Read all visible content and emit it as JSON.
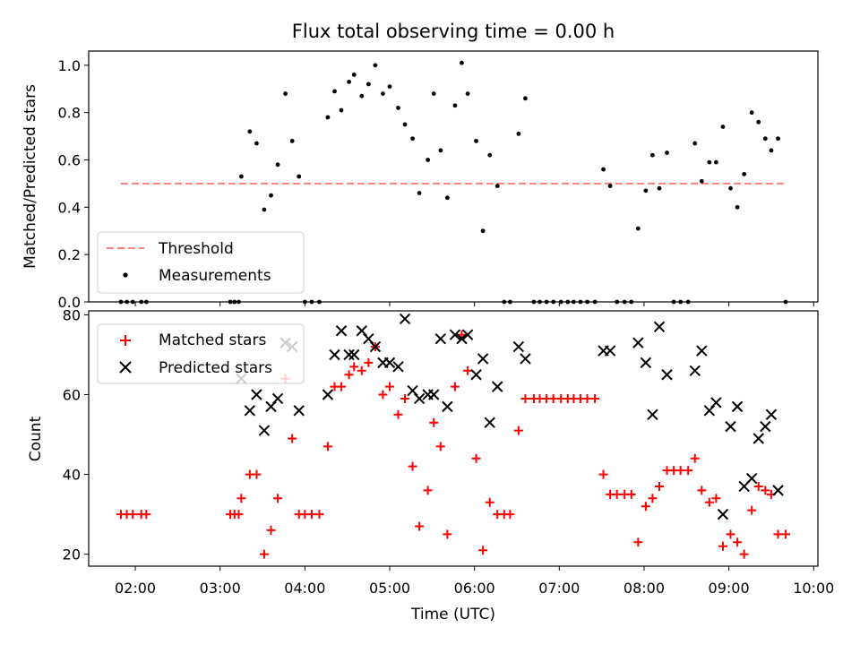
{
  "figure": {
    "title": "Flux total observing time = 0.00 h",
    "xlabel": "Time (UTC)",
    "x_tick_labels": [
      "02:00",
      "03:00",
      "04:00",
      "05:00",
      "06:00",
      "07:00",
      "08:00",
      "09:00",
      "10:00"
    ]
  },
  "chart_data": [
    {
      "type": "scatter",
      "ylabel": "Matched/Predicted stars",
      "xlim": [
        1.45,
        10.05
      ],
      "ylim": [
        0,
        1.06
      ],
      "y_ticks": [
        0.0,
        0.2,
        0.4,
        0.6,
        0.8,
        1.0
      ],
      "y_tick_labels": [
        "0.0",
        "0.2",
        "0.4",
        "0.6",
        "0.8",
        "1.0"
      ],
      "legend_position": "lower-left",
      "threshold": {
        "name": "Threshold",
        "value": 0.5,
        "x_range": [
          1.83,
          9.67
        ],
        "color": "#ff7f7f"
      },
      "series": [
        {
          "name": "Measurements",
          "color": "#000000",
          "marker": "dot",
          "points": [
            [
              1.83,
              0
            ],
            [
              1.9,
              0
            ],
            [
              1.97,
              0
            ],
            [
              2.07,
              0
            ],
            [
              2.13,
              0
            ],
            [
              3.12,
              0
            ],
            [
              3.17,
              0
            ],
            [
              3.22,
              0
            ],
            [
              3.25,
              0.53
            ],
            [
              3.35,
              0.72
            ],
            [
              3.43,
              0.67
            ],
            [
              3.52,
              0.39
            ],
            [
              3.6,
              0.45
            ],
            [
              3.68,
              0.58
            ],
            [
              3.77,
              0.88
            ],
            [
              3.85,
              0.68
            ],
            [
              3.93,
              0.53
            ],
            [
              4.0,
              0
            ],
            [
              4.08,
              0
            ],
            [
              4.17,
              0
            ],
            [
              4.27,
              0.78
            ],
            [
              4.35,
              0.89
            ],
            [
              4.43,
              0.81
            ],
            [
              4.52,
              0.93
            ],
            [
              4.58,
              0.96
            ],
            [
              4.67,
              0.87
            ],
            [
              4.75,
              0.92
            ],
            [
              4.83,
              1.0
            ],
            [
              4.92,
              0.88
            ],
            [
              5.0,
              0.91
            ],
            [
              5.1,
              0.82
            ],
            [
              5.18,
              0.75
            ],
            [
              5.27,
              0.69
            ],
            [
              5.35,
              0.46
            ],
            [
              5.45,
              0.6
            ],
            [
              5.52,
              0.88
            ],
            [
              5.6,
              0.64
            ],
            [
              5.68,
              0.44
            ],
            [
              5.77,
              0.83
            ],
            [
              5.85,
              1.01
            ],
            [
              5.92,
              0.88
            ],
            [
              6.02,
              0.68
            ],
            [
              6.1,
              0.3
            ],
            [
              6.18,
              0.62
            ],
            [
              6.27,
              0.49
            ],
            [
              6.35,
              0
            ],
            [
              6.42,
              0
            ],
            [
              6.52,
              0.71
            ],
            [
              6.6,
              0.86
            ],
            [
              6.7,
              0
            ],
            [
              6.77,
              0
            ],
            [
              6.85,
              0
            ],
            [
              6.93,
              0
            ],
            [
              7.02,
              0
            ],
            [
              7.1,
              0
            ],
            [
              7.17,
              0
            ],
            [
              7.25,
              0
            ],
            [
              7.33,
              0
            ],
            [
              7.42,
              0
            ],
            [
              7.52,
              0.56
            ],
            [
              7.6,
              0.49
            ],
            [
              7.68,
              0
            ],
            [
              7.77,
              0
            ],
            [
              7.85,
              0
            ],
            [
              7.93,
              0.31
            ],
            [
              8.02,
              0.47
            ],
            [
              8.1,
              0.62
            ],
            [
              8.18,
              0.48
            ],
            [
              8.27,
              0.63
            ],
            [
              8.35,
              0
            ],
            [
              8.43,
              0
            ],
            [
              8.52,
              0
            ],
            [
              8.6,
              0.67
            ],
            [
              8.68,
              0.51
            ],
            [
              8.77,
              0.59
            ],
            [
              8.85,
              0.59
            ],
            [
              8.93,
              0.74
            ],
            [
              9.02,
              0.48
            ],
            [
              9.1,
              0.4
            ],
            [
              9.18,
              0.54
            ],
            [
              9.27,
              0.8
            ],
            [
              9.35,
              0.76
            ],
            [
              9.43,
              0.69
            ],
            [
              9.5,
              0.64
            ],
            [
              9.58,
              0.69
            ],
            [
              9.67,
              0
            ]
          ]
        }
      ]
    },
    {
      "type": "scatter",
      "ylabel": "Count",
      "xlim": [
        1.45,
        10.05
      ],
      "ylim": [
        17,
        81
      ],
      "y_ticks": [
        20,
        40,
        60,
        80
      ],
      "y_tick_labels": [
        "20",
        "40",
        "60",
        "80"
      ],
      "legend_position": "upper-left",
      "series": [
        {
          "name": "Matched stars",
          "color": "#ff0000",
          "marker": "plus",
          "points": [
            [
              1.83,
              30
            ],
            [
              1.9,
              30
            ],
            [
              1.97,
              30
            ],
            [
              2.07,
              30
            ],
            [
              2.13,
              30
            ],
            [
              3.12,
              30
            ],
            [
              3.17,
              30
            ],
            [
              3.22,
              30
            ],
            [
              3.25,
              34
            ],
            [
              3.35,
              40
            ],
            [
              3.43,
              40
            ],
            [
              3.52,
              20
            ],
            [
              3.6,
              26
            ],
            [
              3.68,
              34
            ],
            [
              3.77,
              64
            ],
            [
              3.85,
              49
            ],
            [
              3.93,
              30
            ],
            [
              4.0,
              30
            ],
            [
              4.08,
              30
            ],
            [
              4.17,
              30
            ],
            [
              4.27,
              47
            ],
            [
              4.35,
              62
            ],
            [
              4.43,
              62
            ],
            [
              4.52,
              65
            ],
            [
              4.58,
              67
            ],
            [
              4.67,
              66
            ],
            [
              4.75,
              68
            ],
            [
              4.83,
              72
            ],
            [
              4.92,
              60
            ],
            [
              5.0,
              62
            ],
            [
              5.1,
              55
            ],
            [
              5.18,
              59
            ],
            [
              5.27,
              42
            ],
            [
              5.35,
              27
            ],
            [
              5.45,
              36
            ],
            [
              5.52,
              53
            ],
            [
              5.6,
              47
            ],
            [
              5.68,
              25
            ],
            [
              5.77,
              62
            ],
            [
              5.85,
              75
            ],
            [
              5.92,
              66
            ],
            [
              6.02,
              44
            ],
            [
              6.1,
              21
            ],
            [
              6.18,
              33
            ],
            [
              6.27,
              30
            ],
            [
              6.35,
              30
            ],
            [
              6.42,
              30
            ],
            [
              6.52,
              51
            ],
            [
              6.6,
              59
            ],
            [
              6.7,
              59
            ],
            [
              6.77,
              59
            ],
            [
              6.85,
              59
            ],
            [
              6.93,
              59
            ],
            [
              7.02,
              59
            ],
            [
              7.1,
              59
            ],
            [
              7.17,
              59
            ],
            [
              7.25,
              59
            ],
            [
              7.33,
              59
            ],
            [
              7.42,
              59
            ],
            [
              7.52,
              40
            ],
            [
              7.6,
              35
            ],
            [
              7.68,
              35
            ],
            [
              7.77,
              35
            ],
            [
              7.85,
              35
            ],
            [
              7.93,
              23
            ],
            [
              8.02,
              32
            ],
            [
              8.1,
              34
            ],
            [
              8.18,
              37
            ],
            [
              8.27,
              41
            ],
            [
              8.35,
              41
            ],
            [
              8.43,
              41
            ],
            [
              8.52,
              41
            ],
            [
              8.6,
              44
            ],
            [
              8.68,
              36
            ],
            [
              8.77,
              33
            ],
            [
              8.85,
              34
            ],
            [
              8.93,
              22
            ],
            [
              9.02,
              25
            ],
            [
              9.1,
              23
            ],
            [
              9.18,
              20
            ],
            [
              9.27,
              31
            ],
            [
              9.35,
              37
            ],
            [
              9.43,
              36
            ],
            [
              9.5,
              35
            ],
            [
              9.58,
              25
            ],
            [
              9.67,
              25
            ]
          ]
        },
        {
          "name": "Predicted stars",
          "color": "#000000",
          "marker": "x",
          "points": [
            [
              3.25,
              64
            ],
            [
              3.35,
              56
            ],
            [
              3.43,
              60
            ],
            [
              3.52,
              51
            ],
            [
              3.6,
              57
            ],
            [
              3.68,
              59
            ],
            [
              3.77,
              73
            ],
            [
              3.85,
              72
            ],
            [
              3.93,
              56
            ],
            [
              4.27,
              60
            ],
            [
              4.35,
              70
            ],
            [
              4.43,
              76
            ],
            [
              4.52,
              70
            ],
            [
              4.58,
              70
            ],
            [
              4.67,
              76
            ],
            [
              4.75,
              74
            ],
            [
              4.83,
              72
            ],
            [
              4.92,
              68
            ],
            [
              5.0,
              68
            ],
            [
              5.1,
              67
            ],
            [
              5.18,
              79
            ],
            [
              5.27,
              61
            ],
            [
              5.35,
              59
            ],
            [
              5.45,
              60
            ],
            [
              5.52,
              60
            ],
            [
              5.6,
              74
            ],
            [
              5.68,
              57
            ],
            [
              5.77,
              75
            ],
            [
              5.85,
              74
            ],
            [
              5.92,
              75
            ],
            [
              6.02,
              65
            ],
            [
              6.1,
              69
            ],
            [
              6.18,
              53
            ],
            [
              6.27,
              62
            ],
            [
              6.52,
              72
            ],
            [
              6.6,
              69
            ],
            [
              7.52,
              71
            ],
            [
              7.6,
              71
            ],
            [
              7.93,
              73
            ],
            [
              8.02,
              68
            ],
            [
              8.1,
              55
            ],
            [
              8.18,
              77
            ],
            [
              8.27,
              65
            ],
            [
              8.6,
              66
            ],
            [
              8.68,
              71
            ],
            [
              8.77,
              56
            ],
            [
              8.85,
              58
            ],
            [
              8.93,
              30
            ],
            [
              9.02,
              52
            ],
            [
              9.1,
              57
            ],
            [
              9.18,
              37
            ],
            [
              9.27,
              39
            ],
            [
              9.35,
              49
            ],
            [
              9.43,
              52
            ],
            [
              9.5,
              55
            ],
            [
              9.58,
              36
            ]
          ]
        }
      ]
    }
  ]
}
